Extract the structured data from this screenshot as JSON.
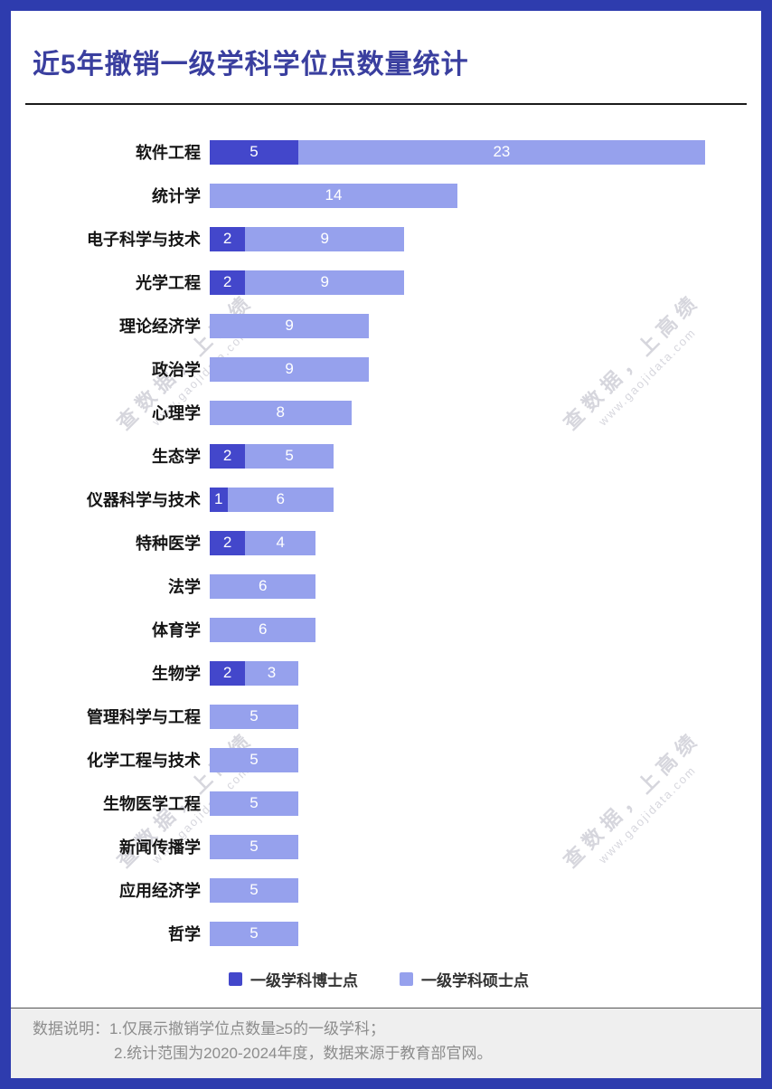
{
  "page": {
    "title": "近5年撤销一级学科学位点数量统计"
  },
  "colors": {
    "frame": "#2e3cae",
    "title": "#3a3f9f",
    "doctoral": "#4347cb",
    "master": "#96a1ed",
    "footer_bg": "#efefef",
    "footer_text": "#8c8c8c",
    "watermark": "#b6b6c2"
  },
  "legend": [
    {
      "label": "一级学科博士点",
      "color": "#4347cb"
    },
    {
      "label": "一级学科硕士点",
      "color": "#96a1ed"
    }
  ],
  "footer": {
    "line1": "数据说明：1.仅展示撤销学位点数量≥5的一级学科；",
    "line2": "2.统计范围为2020-2024年度，数据来源于教育部官网。"
  },
  "watermark": {
    "text": "查数据，上高绩",
    "url": "www.gaojidata.com"
  },
  "chart_data": {
    "type": "bar",
    "orientation": "horizontal",
    "title": "近5年撤销一级学科学位点数量统计",
    "categories": [
      "软件工程",
      "统计学",
      "电子科学与技术",
      "光学工程",
      "理论经济学",
      "政治学",
      "心理学",
      "生态学",
      "仪器科学与技术",
      "特种医学",
      "法学",
      "体育学",
      "生物学",
      "管理科学与工程",
      "化学工程与技术",
      "生物医学工程",
      "新闻传播学",
      "应用经济学",
      "哲学"
    ],
    "series": [
      {
        "name": "一级学科博士点",
        "color": "#4347cb",
        "values": [
          5,
          0,
          2,
          2,
          0,
          0,
          0,
          2,
          1,
          2,
          0,
          0,
          2,
          0,
          0,
          0,
          0,
          0,
          0
        ]
      },
      {
        "name": "一级学科硕士点",
        "color": "#96a1ed",
        "values": [
          23,
          14,
          9,
          9,
          9,
          9,
          8,
          5,
          6,
          4,
          6,
          6,
          3,
          5,
          5,
          5,
          5,
          5,
          5
        ]
      }
    ],
    "xlim": [
      0,
      28
    ],
    "grid": false,
    "legend_position": "bottom"
  }
}
